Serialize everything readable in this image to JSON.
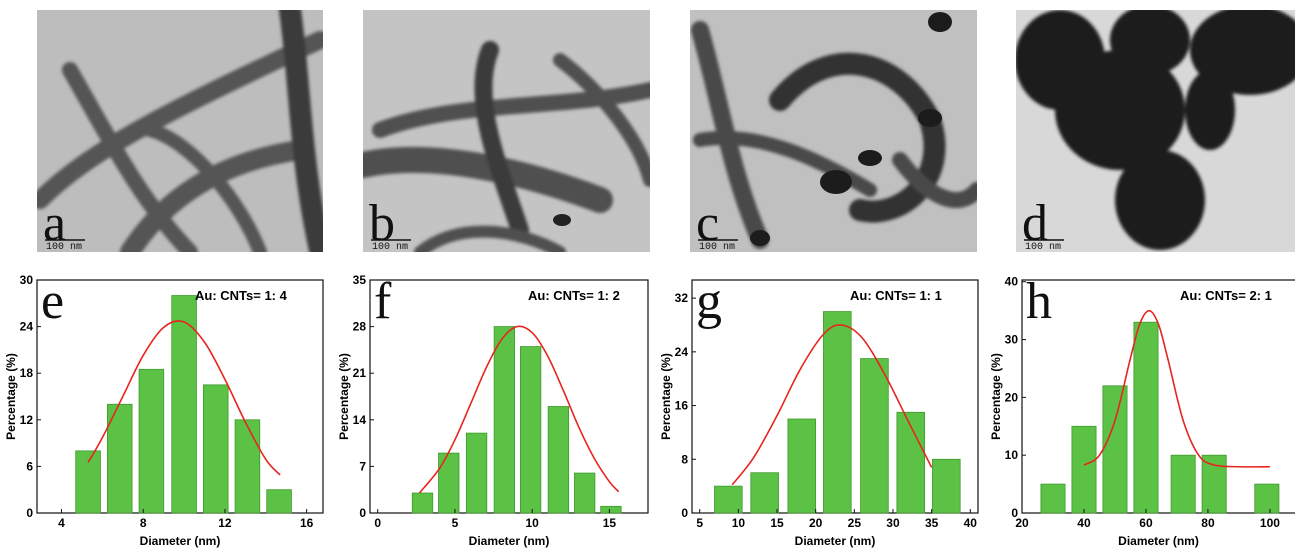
{
  "images": [
    {
      "label": "a",
      "scale_bar": "100 nm"
    },
    {
      "label": "b",
      "scale_bar": "100 nm"
    },
    {
      "label": "c",
      "scale_bar": "100 nm"
    },
    {
      "label": "d",
      "scale_bar": "100 nm"
    }
  ],
  "chart_data": [
    {
      "type": "bar",
      "panel_label": "e",
      "title": "Au: CNTs= 1: 4",
      "x_label": "Diameter (nm)",
      "y_label": "Percentage (%)",
      "xlim": [
        2.8,
        16.8
      ],
      "xticks": [
        4,
        8,
        12,
        16
      ],
      "ylim": [
        0,
        30
      ],
      "yticks": [
        0,
        6,
        12,
        18,
        24,
        30
      ],
      "series": [
        {
          "type": "bar",
          "color": "#5cc245",
          "x": [
            5.3,
            6.85,
            8.4,
            10.0,
            11.55,
            13.1,
            14.65
          ],
          "values": [
            8,
            14,
            18.5,
            28,
            16.5,
            12,
            3
          ]
        },
        {
          "type": "line",
          "color": "#e8241f",
          "x": [
            5.3,
            6,
            7,
            8,
            9,
            10,
            11,
            12,
            13,
            14,
            14.7
          ],
          "values": [
            6.5,
            9.7,
            15.0,
            20.3,
            23.9,
            24.6,
            22.0,
            17.2,
            11.7,
            6.9,
            4.9
          ]
        }
      ]
    },
    {
      "type": "bar",
      "panel_label": "f",
      "title": "Au: CNTs= 1: 2",
      "x_label": "Diameter (nm)",
      "y_label": "Percentage (%)",
      "xlim": [
        -0.5,
        17.5
      ],
      "xticks": [
        0,
        5,
        10,
        15
      ],
      "ylim": [
        0,
        35
      ],
      "yticks": [
        0,
        7,
        14,
        21,
        28,
        35
      ],
      "series": [
        {
          "type": "bar",
          "color": "#5cc245",
          "x": [
            2.9,
            4.6,
            6.4,
            8.2,
            9.9,
            11.7,
            13.4,
            15.1
          ],
          "values": [
            3,
            9,
            12,
            28,
            25,
            16,
            6,
            1
          ]
        },
        {
          "type": "line",
          "color": "#e8241f",
          "x": [
            2.7,
            4,
            5,
            6,
            7,
            8,
            9,
            10,
            11,
            12,
            13,
            14,
            15,
            15.6
          ],
          "values": [
            3.0,
            6.7,
            11.0,
            16.3,
            21.7,
            26.0,
            28.0,
            27.1,
            23.6,
            18.5,
            13.0,
            8.3,
            4.7,
            3.2
          ]
        }
      ]
    },
    {
      "type": "bar",
      "panel_label": "g",
      "title": "Au: CNTs= 1: 1",
      "x_label": "Diameter (nm)",
      "y_label": "Percentage (%)",
      "xlim": [
        4,
        41
      ],
      "xticks": [
        5,
        10,
        15,
        20,
        25,
        30,
        35,
        40
      ],
      "ylim": [
        0,
        34.7
      ],
      "yticks": [
        0,
        8,
        16,
        24,
        32
      ],
      "series": [
        {
          "type": "bar",
          "color": "#5cc245",
          "x": [
            8.7,
            13.4,
            18.2,
            22.8,
            27.6,
            32.3,
            36.9
          ],
          "values": [
            4,
            6,
            14,
            30,
            23,
            15,
            8
          ]
        },
        {
          "type": "line",
          "color": "#e8241f",
          "x": [
            9.2,
            12,
            15,
            18,
            21,
            23.3,
            26,
            29,
            32,
            35
          ],
          "values": [
            4.2,
            8.3,
            14.5,
            21.4,
            26.6,
            28,
            26.1,
            20.5,
            13.6,
            6.8
          ]
        }
      ]
    },
    {
      "type": "bar",
      "panel_label": "h",
      "title": "Au: CNTs= 2: 1",
      "x_label": "Diameter (nm)",
      "y_label": "Percentage (%)",
      "xlim": [
        20,
        109.7
      ],
      "xticks": [
        20,
        40,
        60,
        80,
        100
      ],
      "ylim": [
        0,
        40.3
      ],
      "yticks": [
        0,
        10,
        20,
        30,
        40
      ],
      "series": [
        {
          "type": "bar",
          "color": "#5cc245",
          "x": [
            30,
            40,
            50,
            60,
            72,
            82,
            99
          ],
          "values": [
            5,
            15,
            22,
            33,
            10,
            10,
            5
          ]
        },
        {
          "type": "line",
          "color": "#e8241f",
          "x": [
            40,
            45,
            50,
            55,
            58,
            61,
            64,
            67,
            72,
            77,
            82,
            90,
            100
          ],
          "values": [
            8.3,
            10.0,
            16.0,
            26.8,
            32.7,
            35,
            32.7,
            26.8,
            16.0,
            10.0,
            8.3,
            8.0,
            8.0
          ]
        }
      ]
    }
  ]
}
